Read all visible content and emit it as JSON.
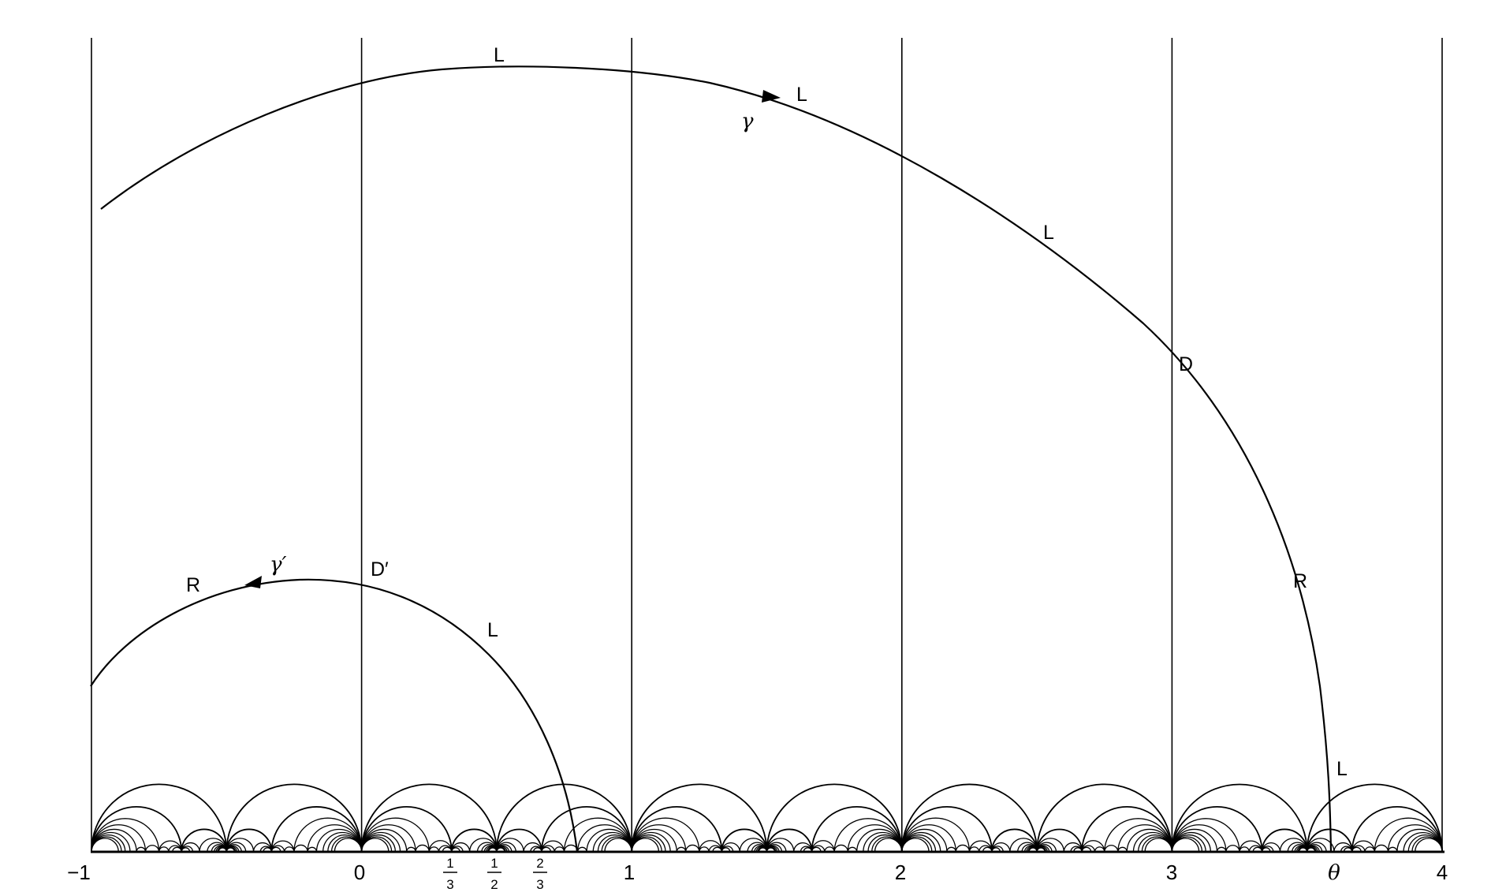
{
  "figure": {
    "axis_ticks": [
      "−1",
      "0",
      "1",
      "2",
      "3",
      "θ",
      "4"
    ],
    "fraction_ticks": [
      {
        "num": "1",
        "den": "3"
      },
      {
        "num": "1",
        "den": "2"
      },
      {
        "num": "2",
        "den": "3"
      }
    ],
    "geodesic_gamma": {
      "name": "γ",
      "cut_labels": [
        "L",
        "L",
        "L",
        "D",
        "R",
        "L"
      ]
    },
    "geodesic_gamma_prime": {
      "name": "γ′",
      "cut_labels": [
        "R",
        "D′",
        "L"
      ]
    }
  }
}
